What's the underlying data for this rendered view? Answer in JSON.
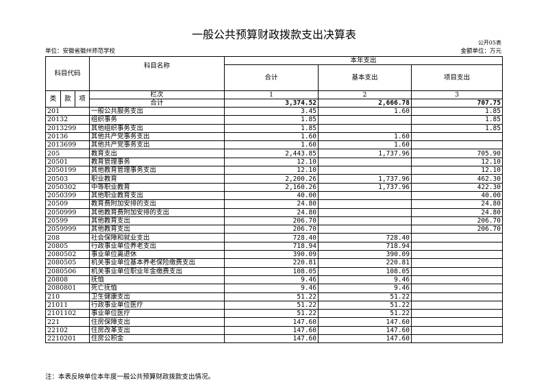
{
  "title": "一般公共预算财政拨款支出决算表",
  "form_no": "公开05表",
  "unit": "单位：安徽省徽州师范学校",
  "money_unit": "金额单位：万元",
  "headers": {
    "code": "科目代码",
    "name": "科目名称",
    "this_year": "本年支出",
    "total": "合计",
    "basic": "基本支出",
    "project": "项目支出",
    "lei": "类",
    "kuan": "款",
    "xiang": "项",
    "lanci": "栏次",
    "col1": "1",
    "col2": "2",
    "col3": "3",
    "sum_label": "合计"
  },
  "totals": {
    "total": "3,374.52",
    "basic": "2,666.78",
    "project": "707.75"
  },
  "rows": [
    {
      "code": "201",
      "name": "一般公共服务支出",
      "total": "3.45",
      "basic": "1.60",
      "project": "1.85"
    },
    {
      "code": "20132",
      "name": "组织事务",
      "total": "1.85",
      "basic": "",
      "project": "1.85"
    },
    {
      "code": "2013299",
      "name": "其他组织事务支出",
      "total": "1.85",
      "basic": "",
      "project": "1.85"
    },
    {
      "code": "20136",
      "name": "其他共产党事务支出",
      "total": "1.60",
      "basic": "1.60",
      "project": ""
    },
    {
      "code": "2013699",
      "name": "其他共产党事务支出",
      "total": "1.60",
      "basic": "1.60",
      "project": ""
    },
    {
      "code": "205",
      "name": "教育支出",
      "total": "2,443.85",
      "basic": "1,737.96",
      "project": "705.90"
    },
    {
      "code": "20501",
      "name": "教育管理事务",
      "total": "12.10",
      "basic": "",
      "project": "12.10"
    },
    {
      "code": "2050199",
      "name": "其他教育管理事务支出",
      "total": "12.10",
      "basic": "",
      "project": "12.10"
    },
    {
      "code": "20503",
      "name": "职业教育",
      "total": "2,200.26",
      "basic": "1,737.96",
      "project": "462.30"
    },
    {
      "code": "2050302",
      "name": "中等职业教育",
      "total": "2,160.26",
      "basic": "1,737.96",
      "project": "422.30"
    },
    {
      "code": "2050399",
      "name": "其他职业教育支出",
      "total": "40.00",
      "basic": "",
      "project": "40.00"
    },
    {
      "code": "20509",
      "name": "教育费附加安排的支出",
      "total": "24.80",
      "basic": "",
      "project": "24.80"
    },
    {
      "code": "2050999",
      "name": "其他教育费附加安排的支出",
      "total": "24.80",
      "basic": "",
      "project": "24.80"
    },
    {
      "code": "20599",
      "name": "其他教育支出",
      "total": "206.70",
      "basic": "",
      "project": "206.70"
    },
    {
      "code": "2059999",
      "name": "其他教育支出",
      "total": "206.70",
      "basic": "",
      "project": "206.70"
    },
    {
      "code": "208",
      "name": "社会保障和就业支出",
      "total": "728.40",
      "basic": "728.40",
      "project": ""
    },
    {
      "code": "20805",
      "name": "行政事业单位养老支出",
      "total": "718.94",
      "basic": "718.94",
      "project": ""
    },
    {
      "code": "2080502",
      "name": "事业单位离退休",
      "total": "390.09",
      "basic": "390.09",
      "project": ""
    },
    {
      "code": "2080505",
      "name": "机关事业单位基本养老保险缴费支出",
      "total": "220.81",
      "basic": "220.81",
      "project": ""
    },
    {
      "code": "2080506",
      "name": "机关事业单位职业年金缴费支出",
      "total": "108.05",
      "basic": "108.05",
      "project": ""
    },
    {
      "code": "20808",
      "name": "抚恤",
      "total": "9.46",
      "basic": "9.46",
      "project": ""
    },
    {
      "code": "2080801",
      "name": "死亡抚恤",
      "total": "9.46",
      "basic": "9.46",
      "project": ""
    },
    {
      "code": "210",
      "name": "卫生健康支出",
      "total": "51.22",
      "basic": "51.22",
      "project": ""
    },
    {
      "code": "21011",
      "name": "行政事业单位医疗",
      "total": "51.22",
      "basic": "51.22",
      "project": ""
    },
    {
      "code": "2101102",
      "name": "事业单位医疗",
      "total": "51.22",
      "basic": "51.22",
      "project": ""
    },
    {
      "code": "221",
      "name": "住房保障支出",
      "total": "147.60",
      "basic": "147.60",
      "project": ""
    },
    {
      "code": "22102",
      "name": "住房改革支出",
      "total": "147.60",
      "basic": "147.60",
      "project": ""
    },
    {
      "code": "2210201",
      "name": "住房公积金",
      "total": "147.60",
      "basic": "147.60",
      "project": ""
    }
  ],
  "note": "注：本表反映单位本年度一般公共预算财政拨款支出情况。"
}
